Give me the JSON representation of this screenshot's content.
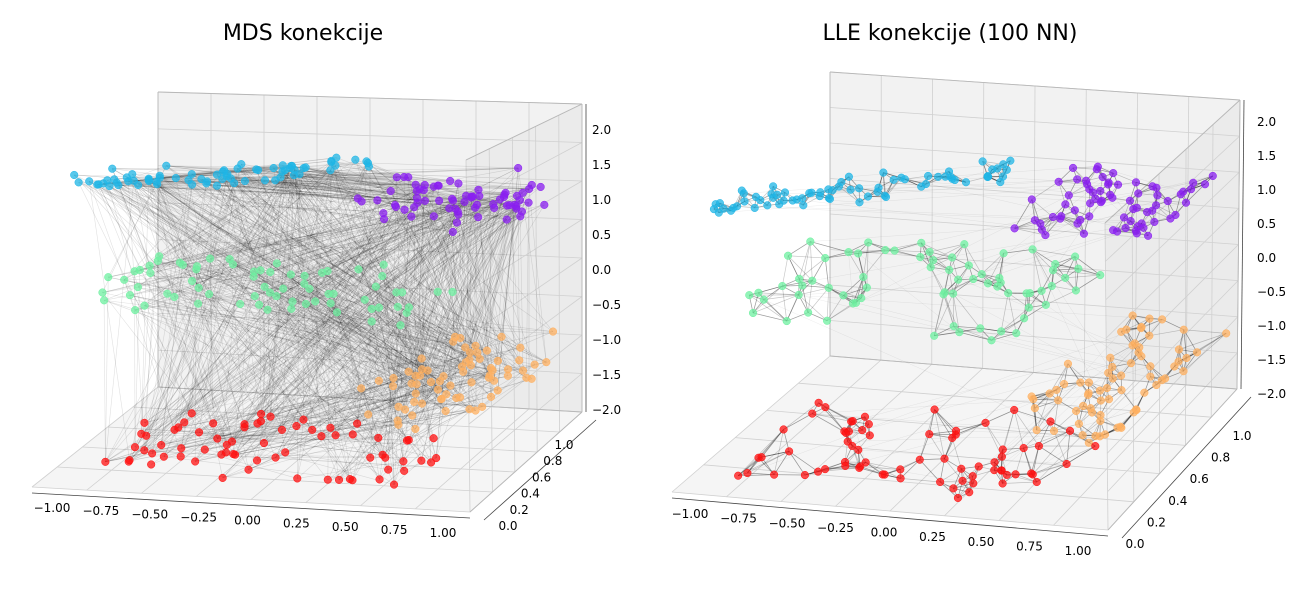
{
  "chart_data": [
    {
      "type": "scatter",
      "title": "MDS konekcije",
      "x_ticks": [
        "−1.00",
        "−0.75",
        "−0.50",
        "−0.25",
        "0.00",
        "0.25",
        "0.50",
        "0.75",
        "1.00"
      ],
      "y_ticks": [
        "0.0",
        "0.2",
        "0.4",
        "0.6",
        "0.8",
        "1.0"
      ],
      "z_ticks": [
        "2.0",
        "1.5",
        "1.0",
        "0.5",
        "0.0",
        "−0.5",
        "−1.0",
        "−1.5",
        "−2.0"
      ],
      "xlim": [
        -1.0,
        1.0
      ],
      "ylim": [
        0.0,
        1.0
      ],
      "zlim": [
        -2.0,
        2.0
      ],
      "connections": "dense black lines between points",
      "clusters": [
        {
          "color": "#1fb5e6",
          "z": 1.4
        },
        {
          "color": "#8a1ff0",
          "z": 1.0
        },
        {
          "color": "#6ef0a0",
          "z": 0.0
        },
        {
          "color": "#ffb060",
          "z": -1.0
        },
        {
          "color": "#ff1010",
          "z": -1.8
        }
      ]
    },
    {
      "type": "scatter",
      "title": "LLE konekcije (100 NN)",
      "x_ticks": [
        "−1.00",
        "−0.75",
        "−0.50",
        "−0.25",
        "0.00",
        "0.25",
        "0.50",
        "0.75",
        "1.00"
      ],
      "y_ticks": [
        "0.0",
        "0.2",
        "0.4",
        "0.6",
        "0.8",
        "1.0"
      ],
      "z_ticks": [
        "2.0",
        "1.5",
        "1.0",
        "0.5",
        "0.0",
        "−0.5",
        "−1.0",
        "−1.5",
        "−2.0"
      ],
      "xlim": [
        -1.0,
        1.0
      ],
      "ylim": [
        0.0,
        1.0
      ],
      "zlim": [
        -2.0,
        2.0
      ],
      "connections": "local neighbour lines",
      "clusters": [
        {
          "color": "#1fb5e6",
          "z": 1.5
        },
        {
          "color": "#8a1ff0",
          "z": 1.0
        },
        {
          "color": "#6ef0a0",
          "z": 0.0
        },
        {
          "color": "#ffb060",
          "z": -1.0
        },
        {
          "color": "#ff1010",
          "z": -1.8
        }
      ]
    }
  ]
}
